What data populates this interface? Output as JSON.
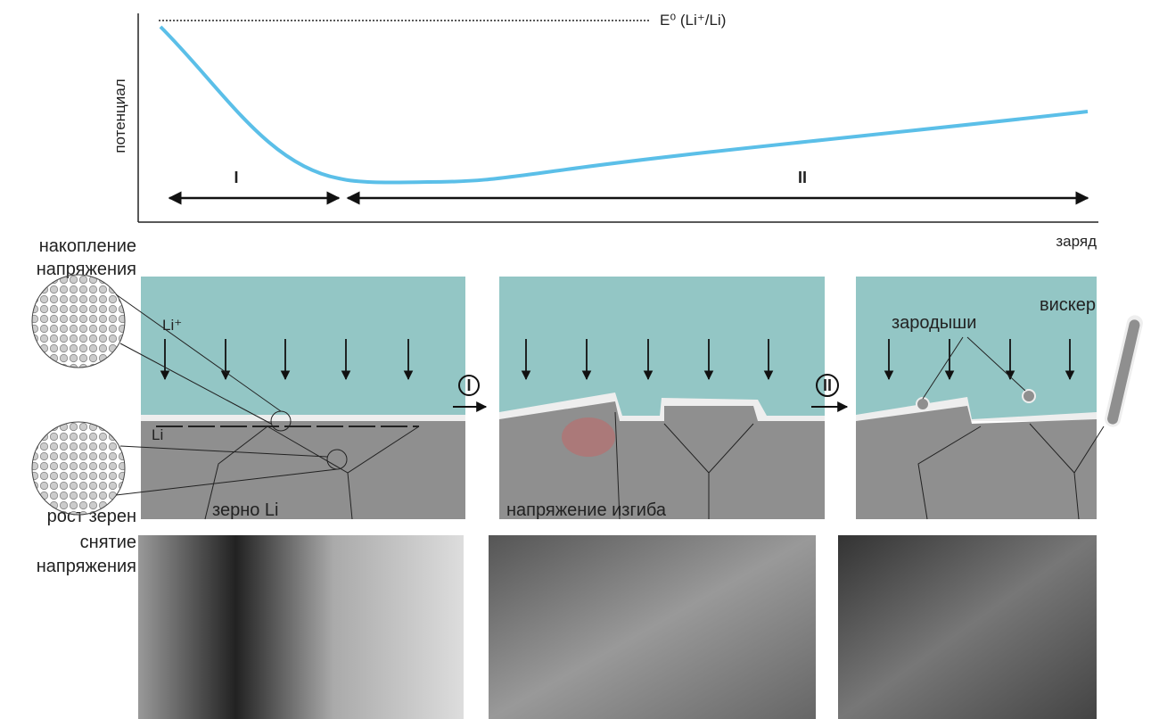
{
  "chart": {
    "reference_label": "E⁰ (Li⁺/Li)",
    "y_label": "потенциал",
    "x_label": "заряд",
    "regions": [
      "I",
      "II"
    ]
  },
  "left_labels": {
    "stress_accumulation": [
      "накопление",
      "напряжения"
    ],
    "grain_growth": "рост зерен",
    "stress_relief": [
      "снятие",
      "напряжения"
    ]
  },
  "panels": [
    {
      "ion_label": "Li⁺",
      "metal_label": "Li",
      "grain_label": "зерно Li"
    },
    {
      "stress_label": "напряжение изгиба"
    },
    {
      "nuclei_label": "зародыши",
      "whisker_label": "вискер"
    }
  ],
  "steps": [
    "I",
    "II"
  ]
}
